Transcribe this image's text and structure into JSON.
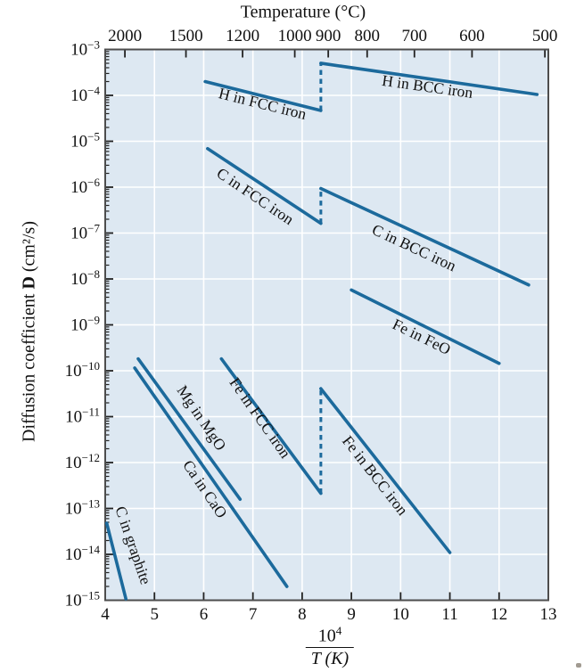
{
  "figure": {
    "top_axis": {
      "title": "Temperature (°C)",
      "ticks": [
        {
          "label": "2000",
          "x": 4.4
        },
        {
          "label": "1500",
          "x": 5.64
        },
        {
          "label": "1200",
          "x": 6.79
        },
        {
          "label": "1000",
          "x": 7.85
        },
        {
          "label": "900",
          "x": 8.53
        },
        {
          "label": "800",
          "x": 9.32
        },
        {
          "label": "700",
          "x": 10.28
        },
        {
          "label": "600",
          "x": 11.45
        },
        {
          "label": "500",
          "x": 12.93
        }
      ]
    },
    "bottom_axis": {
      "title_numerator_base": "10",
      "title_numerator_exponent": "4",
      "title_denominator": "T (K)",
      "ticks": [
        "4",
        "5",
        "6",
        "7",
        "8",
        "9",
        "10",
        "11",
        "12",
        "13"
      ]
    },
    "left_axis": {
      "label_prefix": "Diffusion coefficient",
      "label_symbol": "D",
      "label_units": "(cm²/s)",
      "tick_base": "10",
      "tick_exponents": [
        -3,
        -4,
        -5,
        -6,
        -7,
        -8,
        -9,
        -10,
        -11,
        -12,
        -13,
        -14,
        -15
      ]
    }
  },
  "chart_data": {
    "type": "line",
    "title": "Temperature (°C)",
    "xlabel": "10^4 / T(K)",
    "ylabel": "Diffusion coefficient D (cm²/s)",
    "x_range": [
      4,
      13
    ],
    "y_log10_range": [
      -3,
      -15
    ],
    "y_scale": "log10",
    "grid": true,
    "series": [
      {
        "name": "H in FCC iron",
        "points": [
          [
            6.03,
            -3.7
          ],
          [
            8.38,
            -4.33
          ]
        ],
        "label": {
          "x": 7.17,
          "logD": -4.29,
          "rotation": 14
        }
      },
      {
        "name": "H in BCC iron",
        "points": [
          [
            8.38,
            -3.3
          ],
          [
            12.77,
            -3.98
          ]
        ],
        "label": {
          "x": 10.53,
          "logD": -3.92,
          "rotation": 8
        }
      },
      {
        "name": "C in FCC iron",
        "points": [
          [
            6.08,
            -5.16
          ],
          [
            8.38,
            -6.79
          ]
        ],
        "label": {
          "x": 6.99,
          "logD": -6.29,
          "rotation": 34
        }
      },
      {
        "name": "C in BCC iron",
        "points": [
          [
            8.38,
            -6.03
          ],
          [
            12.6,
            -8.13
          ]
        ],
        "label": {
          "x": 10.23,
          "logD": -7.42,
          "rotation": 25
        }
      },
      {
        "name": "Fe in FeO",
        "points": [
          [
            9.0,
            -8.24
          ],
          [
            12.0,
            -9.84
          ]
        ],
        "label": {
          "x": 10.38,
          "logD": -9.36,
          "rotation": 26
        }
      },
      {
        "name": "Fe in FCC iron",
        "points": [
          [
            6.36,
            -9.74
          ],
          [
            8.38,
            -12.67
          ]
        ],
        "label": {
          "x": 7.06,
          "logD": -11.09,
          "rotation": 55
        }
      },
      {
        "name": "Fe in BCC iron",
        "points": [
          [
            8.38,
            -10.39
          ],
          [
            11.0,
            -13.96
          ]
        ],
        "label": {
          "x": 9.4,
          "logD": -12.35,
          "rotation": 52
        }
      },
      {
        "name": "Mg in MgO",
        "points": [
          [
            4.67,
            -9.74
          ],
          [
            6.74,
            -12.8
          ]
        ],
        "label": {
          "x": 5.87,
          "logD": -11.09,
          "rotation": 56
        }
      },
      {
        "name": "Ca in CaO",
        "points": [
          [
            4.6,
            -9.94
          ],
          [
            7.69,
            -14.7
          ]
        ],
        "label": {
          "x": 5.94,
          "logD": -12.64,
          "rotation": 56
        }
      },
      {
        "name": "C in graphite",
        "points": [
          [
            4.03,
            -13.32
          ],
          [
            4.42,
            -14.97
          ]
        ],
        "label": {
          "x": 4.47,
          "logD": -13.84,
          "rotation": 71
        }
      }
    ],
    "transitions": [
      {
        "name": "H FCC-BCC transition",
        "x": 8.38,
        "logD_from": -4.33,
        "logD_to": -3.3
      },
      {
        "name": "C FCC-BCC transition",
        "x": 8.38,
        "logD_from": -6.79,
        "logD_to": -6.03
      },
      {
        "name": "Fe FCC-BCC transition",
        "x": 8.38,
        "logD_from": -12.67,
        "logD_to": -10.39
      }
    ]
  },
  "colors": {
    "line": "#1c6a9c",
    "plot_bg": "#dde8f2",
    "grid": "#ffffff",
    "frame": "#4d4d4d",
    "tick": "#222222",
    "text": "#111111"
  }
}
